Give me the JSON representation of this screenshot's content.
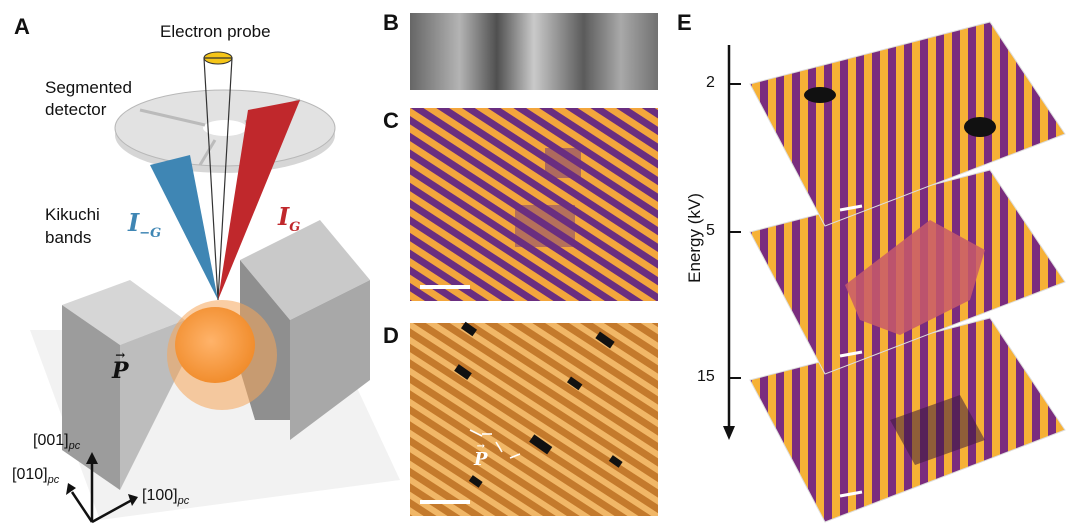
{
  "panels": {
    "A": "A",
    "B": "B",
    "C": "C",
    "D": "D",
    "E": "E"
  },
  "panelA": {
    "electron_probe": "Electron probe",
    "segmented_detector_line1": "Segmented",
    "segmented_detector_line2": "detector",
    "kikuchi_line1": "Kikuchi",
    "kikuchi_line2": "bands",
    "i_minus_g": "I",
    "i_minus_g_sub": "−G",
    "i_g": "I",
    "i_g_sub": "G",
    "polarization": "P",
    "axis_001": "[001]",
    "axis_010": "[010]",
    "axis_100": "[100]",
    "axis_sub": "pc"
  },
  "panelD": {
    "polarization": "P"
  },
  "panelE": {
    "axis_label": "Energy (kV)",
    "ticks": [
      "2",
      "5",
      "15"
    ]
  },
  "colors": {
    "blue_band": "#3f86b4",
    "red_band": "#c0282c",
    "orange": "#ee8a2d",
    "stripe_dark": "#6a2a7a",
    "stripe_light": "#f4a93a"
  }
}
